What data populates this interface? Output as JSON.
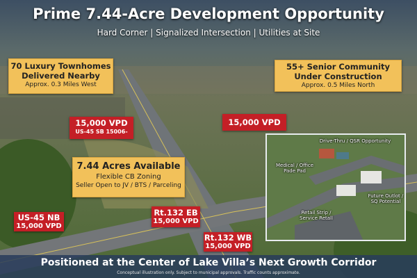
{
  "header": {
    "title": "Prime 7.44-Acre Development Opportunity",
    "subtitle": "Hard Corner | Signalized Intersection | Utilities at Site"
  },
  "callouts": {
    "townhomes": {
      "heading1": "70 Luxury Townhomes",
      "heading2": "Delivered Nearby",
      "detail": "Approx. 0.3 Miles West"
    },
    "senior": {
      "heading1": "55+ Senior Community",
      "heading2": "Under Construction",
      "detail": "Approx. 0.5 Miles North"
    },
    "acres": {
      "heading": "7.44 Acres Available",
      "line1": "Flexible CB Zoning",
      "line2": "Seller Open to JV / BTS / Parceling"
    }
  },
  "traffic": {
    "us45_sb": {
      "count": "15,000 VPD",
      "label": "US-45 SB 15006-"
    },
    "north": {
      "count": "15,000 VPD"
    },
    "us45_nb": {
      "label": "US-45 NB",
      "count": "15,000 VPD"
    },
    "rt132_eb": {
      "label": "Rt.132 EB",
      "count": "15,000 VPD"
    },
    "rt132_wb": {
      "label": "Rt.132 WB",
      "count": "15,000 VPD"
    }
  },
  "inset": {
    "labels": [
      "Drive-Thru / QSR Opportunity",
      "Medical / Office Pade Pad",
      "Future Outlot / SQ Potential",
      "Retail Strip / Service Retall"
    ]
  },
  "footer": {
    "tagline": "Positioned at the Center of Lake Villa’s Next Growth Corridor",
    "disclaimer": "Conceptual illustration only.  Subject to municipal approvals. Traffic counts approximate."
  },
  "colors": {
    "callout_yellow": "#f2c15a",
    "traffic_red": "#c41f26",
    "band_blue": "#28405a"
  }
}
